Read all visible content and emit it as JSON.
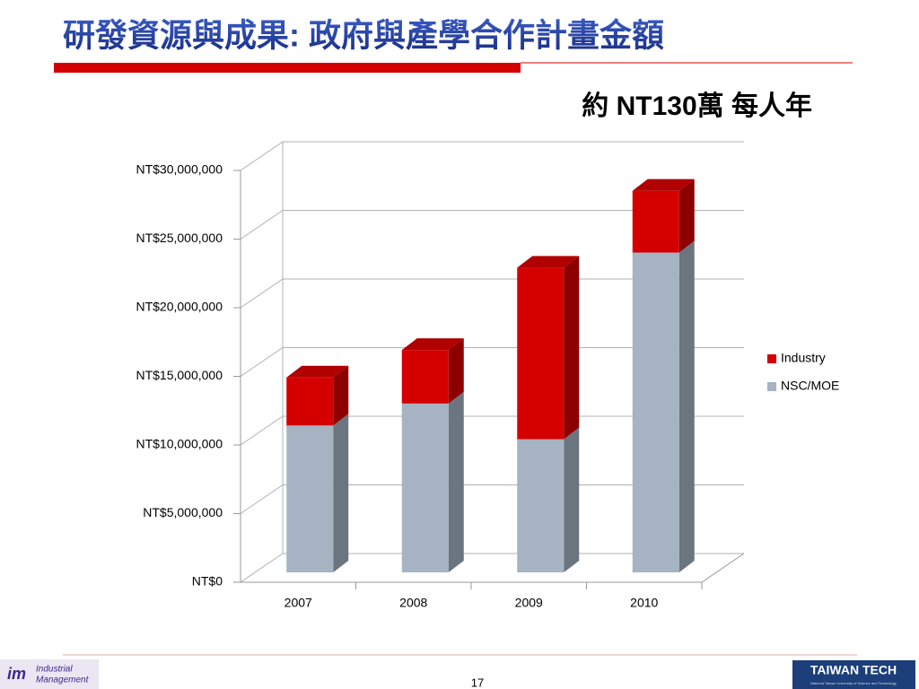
{
  "slide": {
    "title": "研發資源與成果: 政府與產學合作計畫金額",
    "note": "約 NT130萬 每人年",
    "page_number": "17",
    "logo_left": [
      "Industrial",
      "Management"
    ],
    "logo_right": "TAIWAN TECH",
    "logo_right_sub": "National Taiwan University of Science and Technology"
  },
  "chart_data": {
    "type": "bar",
    "stacked": true,
    "three_d": true,
    "categories": [
      "2007",
      "2008",
      "2009",
      "2010"
    ],
    "series": [
      {
        "name": "NSC/MOE",
        "color": "#a5b3c2",
        "values": [
          10700000,
          12300000,
          9700000,
          23300000
        ]
      },
      {
        "name": "Industry",
        "color": "#d40000",
        "values": [
          3500000,
          3900000,
          12500000,
          4500000
        ]
      }
    ],
    "ylim": [
      0,
      30000000
    ],
    "yticks": [
      {
        "value": 0,
        "label": "NT$0"
      },
      {
        "value": 5000000,
        "label": "NT$5,000,000"
      },
      {
        "value": 10000000,
        "label": "NT$10,000,000"
      },
      {
        "value": 15000000,
        "label": "NT$15,000,000"
      },
      {
        "value": 20000000,
        "label": "NT$20,000,000"
      },
      {
        "value": 25000000,
        "label": "NT$25,000,000"
      },
      {
        "value": 30000000,
        "label": "NT$30,000,000"
      }
    ],
    "grid": true,
    "legend": "right"
  }
}
